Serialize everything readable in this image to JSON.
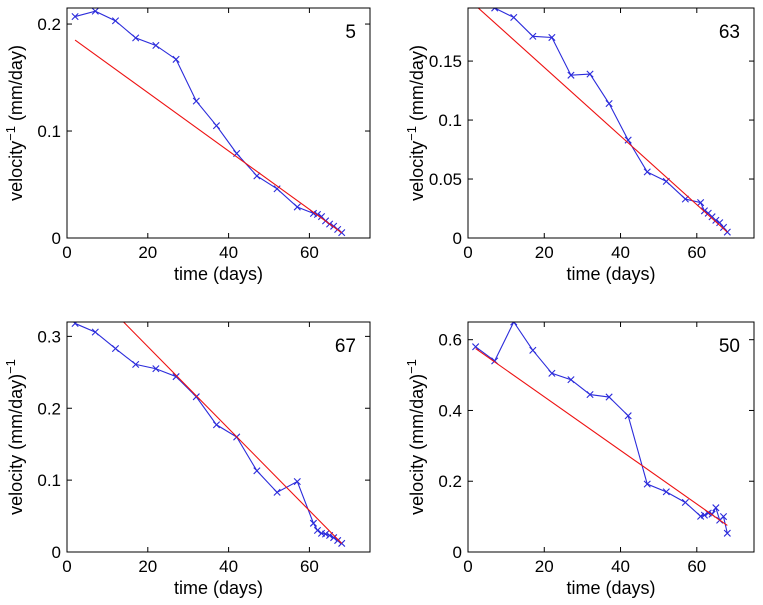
{
  "chart_data": [
    {
      "type": "line",
      "annotation": "5",
      "xlabel": "time (days)",
      "ylabel": "velocity",
      "ylabel_sup": "−1",
      "ylabel_tail": " (mm/day)",
      "xlim": [
        0,
        75
      ],
      "ylim": [
        0,
        0.215
      ],
      "xticks": [
        0,
        20,
        40,
        60
      ],
      "xtick_labels": [
        "0",
        "20",
        "40",
        "60"
      ],
      "yticks": [
        0,
        0.1,
        0.2
      ],
      "ytick_labels": [
        "0",
        "0.1",
        "0.2"
      ],
      "series": [
        {
          "style": "line-x-markers",
          "color": "#2b2bdb",
          "x": [
            2,
            7,
            12,
            17,
            22,
            27,
            32,
            37,
            42,
            47,
            52,
            57,
            61,
            62,
            63,
            64,
            65,
            66,
            67,
            68
          ],
          "y": [
            0.207,
            0.212,
            0.203,
            0.187,
            0.18,
            0.167,
            0.128,
            0.105,
            0.079,
            0.058,
            0.046,
            0.029,
            0.023,
            0.022,
            0.02,
            0.016,
            0.013,
            0.011,
            0.008,
            0.005
          ]
        },
        {
          "style": "line",
          "color": "#ee1111",
          "x": [
            2,
            68
          ],
          "y": [
            0.185,
            0.005
          ]
        }
      ]
    },
    {
      "type": "line",
      "annotation": "63",
      "xlabel": "time (days)",
      "ylabel": "velocity",
      "ylabel_sup": "−1",
      "ylabel_tail": " (mm/day)",
      "xlim": [
        0,
        75
      ],
      "ylim": [
        0,
        0.195
      ],
      "xticks": [
        0,
        20,
        40,
        60
      ],
      "xtick_labels": [
        "0",
        "20",
        "40",
        "60"
      ],
      "yticks": [
        0,
        0.05,
        0.1,
        0.15
      ],
      "ytick_labels": [
        "0",
        "0.05",
        "0.1",
        "0.15"
      ],
      "series": [
        {
          "style": "line-x-markers",
          "color": "#2b2bdb",
          "x": [
            2,
            7,
            12,
            17,
            22,
            27,
            32,
            37,
            42,
            47,
            52,
            57,
            61,
            62,
            63,
            64,
            65,
            66,
            67,
            68
          ],
          "y": [
            0.198,
            0.195,
            0.187,
            0.171,
            0.17,
            0.138,
            0.139,
            0.114,
            0.083,
            0.056,
            0.048,
            0.033,
            0.03,
            0.023,
            0.021,
            0.018,
            0.015,
            0.013,
            0.009,
            0.005
          ]
        },
        {
          "style": "line",
          "color": "#ee1111",
          "x": [
            2,
            68
          ],
          "y": [
            0.197,
            0.005
          ]
        }
      ]
    },
    {
      "type": "line",
      "annotation": "67",
      "xlabel": "time (days)",
      "ylabel": "velocity (mm/day)",
      "ylabel_sup": "−1",
      "ylabel_tail": "",
      "xlim": [
        0,
        75
      ],
      "ylim": [
        0,
        0.32
      ],
      "xticks": [
        0,
        20,
        40,
        60
      ],
      "xtick_labels": [
        "0",
        "20",
        "40",
        "60"
      ],
      "yticks": [
        0,
        0.1,
        0.2,
        0.3
      ],
      "ytick_labels": [
        "0",
        "0.1",
        "0.2",
        "0.3"
      ],
      "series": [
        {
          "style": "line-x-markers",
          "color": "#2b2bdb",
          "x": [
            2,
            7,
            12,
            17,
            22,
            27,
            32,
            37,
            42,
            47,
            52,
            57,
            61,
            62,
            63,
            64,
            65,
            66,
            67,
            68
          ],
          "y": [
            0.318,
            0.306,
            0.283,
            0.261,
            0.255,
            0.244,
            0.216,
            0.177,
            0.16,
            0.113,
            0.083,
            0.098,
            0.04,
            0.03,
            0.026,
            0.025,
            0.023,
            0.02,
            0.016,
            0.012
          ]
        },
        {
          "style": "line",
          "color": "#ee1111",
          "x": [
            14,
            68
          ],
          "y": [
            0.32,
            0.012
          ]
        }
      ]
    },
    {
      "type": "line",
      "annotation": "50",
      "xlabel": "time (days)",
      "ylabel": "velocity (mm/day)",
      "ylabel_sup": "−1",
      "ylabel_tail": "",
      "xlim": [
        0,
        75
      ],
      "ylim": [
        0,
        0.65
      ],
      "xticks": [
        0,
        20,
        40,
        60
      ],
      "xtick_labels": [
        "0",
        "20",
        "40",
        "60"
      ],
      "yticks": [
        0,
        0.2,
        0.4,
        0.6
      ],
      "ytick_labels": [
        "0",
        "0.2",
        "0.4",
        "0.6"
      ],
      "series": [
        {
          "style": "line-x-markers",
          "color": "#2b2bdb",
          "x": [
            2,
            7,
            12,
            17,
            22,
            27,
            32,
            37,
            42,
            47,
            52,
            57,
            61,
            62,
            63,
            64,
            65,
            66,
            67,
            68
          ],
          "y": [
            0.58,
            0.54,
            0.65,
            0.57,
            0.505,
            0.487,
            0.445,
            0.438,
            0.385,
            0.192,
            0.17,
            0.14,
            0.101,
            0.104,
            0.11,
            0.107,
            0.125,
            0.09,
            0.1,
            0.053
          ]
        },
        {
          "style": "line",
          "color": "#ee1111",
          "x": [
            2,
            68
          ],
          "y": [
            0.575,
            0.075
          ]
        }
      ]
    }
  ]
}
